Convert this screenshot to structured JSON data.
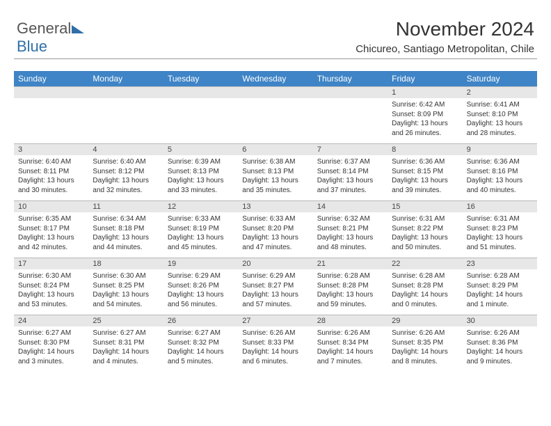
{
  "logo": {
    "text1": "General",
    "text2": "Blue"
  },
  "title": "November 2024",
  "subtitle": "Chicureo, Santiago Metropolitan, Chile",
  "colors": {
    "header_bg": "#3e84c6",
    "header_fg": "#ffffff",
    "daynum_bg": "#e7e7e7",
    "text": "#333333",
    "logo_blue": "#2f6fa8"
  },
  "daysOfWeek": [
    "Sunday",
    "Monday",
    "Tuesday",
    "Wednesday",
    "Thursday",
    "Friday",
    "Saturday"
  ],
  "weeks": [
    [
      {
        "n": "",
        "lines": []
      },
      {
        "n": "",
        "lines": []
      },
      {
        "n": "",
        "lines": []
      },
      {
        "n": "",
        "lines": []
      },
      {
        "n": "",
        "lines": []
      },
      {
        "n": "1",
        "lines": [
          "Sunrise: 6:42 AM",
          "Sunset: 8:09 PM",
          "Daylight: 13 hours and 26 minutes."
        ]
      },
      {
        "n": "2",
        "lines": [
          "Sunrise: 6:41 AM",
          "Sunset: 8:10 PM",
          "Daylight: 13 hours and 28 minutes."
        ]
      }
    ],
    [
      {
        "n": "3",
        "lines": [
          "Sunrise: 6:40 AM",
          "Sunset: 8:11 PM",
          "Daylight: 13 hours and 30 minutes."
        ]
      },
      {
        "n": "4",
        "lines": [
          "Sunrise: 6:40 AM",
          "Sunset: 8:12 PM",
          "Daylight: 13 hours and 32 minutes."
        ]
      },
      {
        "n": "5",
        "lines": [
          "Sunrise: 6:39 AM",
          "Sunset: 8:13 PM",
          "Daylight: 13 hours and 33 minutes."
        ]
      },
      {
        "n": "6",
        "lines": [
          "Sunrise: 6:38 AM",
          "Sunset: 8:13 PM",
          "Daylight: 13 hours and 35 minutes."
        ]
      },
      {
        "n": "7",
        "lines": [
          "Sunrise: 6:37 AM",
          "Sunset: 8:14 PM",
          "Daylight: 13 hours and 37 minutes."
        ]
      },
      {
        "n": "8",
        "lines": [
          "Sunrise: 6:36 AM",
          "Sunset: 8:15 PM",
          "Daylight: 13 hours and 39 minutes."
        ]
      },
      {
        "n": "9",
        "lines": [
          "Sunrise: 6:36 AM",
          "Sunset: 8:16 PM",
          "Daylight: 13 hours and 40 minutes."
        ]
      }
    ],
    [
      {
        "n": "10",
        "lines": [
          "Sunrise: 6:35 AM",
          "Sunset: 8:17 PM",
          "Daylight: 13 hours and 42 minutes."
        ]
      },
      {
        "n": "11",
        "lines": [
          "Sunrise: 6:34 AM",
          "Sunset: 8:18 PM",
          "Daylight: 13 hours and 44 minutes."
        ]
      },
      {
        "n": "12",
        "lines": [
          "Sunrise: 6:33 AM",
          "Sunset: 8:19 PM",
          "Daylight: 13 hours and 45 minutes."
        ]
      },
      {
        "n": "13",
        "lines": [
          "Sunrise: 6:33 AM",
          "Sunset: 8:20 PM",
          "Daylight: 13 hours and 47 minutes."
        ]
      },
      {
        "n": "14",
        "lines": [
          "Sunrise: 6:32 AM",
          "Sunset: 8:21 PM",
          "Daylight: 13 hours and 48 minutes."
        ]
      },
      {
        "n": "15",
        "lines": [
          "Sunrise: 6:31 AM",
          "Sunset: 8:22 PM",
          "Daylight: 13 hours and 50 minutes."
        ]
      },
      {
        "n": "16",
        "lines": [
          "Sunrise: 6:31 AM",
          "Sunset: 8:23 PM",
          "Daylight: 13 hours and 51 minutes."
        ]
      }
    ],
    [
      {
        "n": "17",
        "lines": [
          "Sunrise: 6:30 AM",
          "Sunset: 8:24 PM",
          "Daylight: 13 hours and 53 minutes."
        ]
      },
      {
        "n": "18",
        "lines": [
          "Sunrise: 6:30 AM",
          "Sunset: 8:25 PM",
          "Daylight: 13 hours and 54 minutes."
        ]
      },
      {
        "n": "19",
        "lines": [
          "Sunrise: 6:29 AM",
          "Sunset: 8:26 PM",
          "Daylight: 13 hours and 56 minutes."
        ]
      },
      {
        "n": "20",
        "lines": [
          "Sunrise: 6:29 AM",
          "Sunset: 8:27 PM",
          "Daylight: 13 hours and 57 minutes."
        ]
      },
      {
        "n": "21",
        "lines": [
          "Sunrise: 6:28 AM",
          "Sunset: 8:28 PM",
          "Daylight: 13 hours and 59 minutes."
        ]
      },
      {
        "n": "22",
        "lines": [
          "Sunrise: 6:28 AM",
          "Sunset: 8:28 PM",
          "Daylight: 14 hours and 0 minutes."
        ]
      },
      {
        "n": "23",
        "lines": [
          "Sunrise: 6:28 AM",
          "Sunset: 8:29 PM",
          "Daylight: 14 hours and 1 minute."
        ]
      }
    ],
    [
      {
        "n": "24",
        "lines": [
          "Sunrise: 6:27 AM",
          "Sunset: 8:30 PM",
          "Daylight: 14 hours and 3 minutes."
        ]
      },
      {
        "n": "25",
        "lines": [
          "Sunrise: 6:27 AM",
          "Sunset: 8:31 PM",
          "Daylight: 14 hours and 4 minutes."
        ]
      },
      {
        "n": "26",
        "lines": [
          "Sunrise: 6:27 AM",
          "Sunset: 8:32 PM",
          "Daylight: 14 hours and 5 minutes."
        ]
      },
      {
        "n": "27",
        "lines": [
          "Sunrise: 6:26 AM",
          "Sunset: 8:33 PM",
          "Daylight: 14 hours and 6 minutes."
        ]
      },
      {
        "n": "28",
        "lines": [
          "Sunrise: 6:26 AM",
          "Sunset: 8:34 PM",
          "Daylight: 14 hours and 7 minutes."
        ]
      },
      {
        "n": "29",
        "lines": [
          "Sunrise: 6:26 AM",
          "Sunset: 8:35 PM",
          "Daylight: 14 hours and 8 minutes."
        ]
      },
      {
        "n": "30",
        "lines": [
          "Sunrise: 6:26 AM",
          "Sunset: 8:36 PM",
          "Daylight: 14 hours and 9 minutes."
        ]
      }
    ]
  ]
}
